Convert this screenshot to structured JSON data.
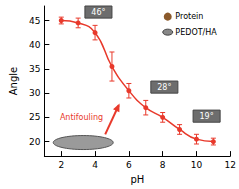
{
  "chart_data": {
    "type": "line",
    "x_label": "pH",
    "y_label": "Angle",
    "x": [
      2,
      3,
      4,
      5,
      6,
      7,
      8,
      9,
      10,
      11
    ],
    "values": [
      45,
      44.5,
      42.5,
      35.5,
      30.5,
      27,
      25,
      22.5,
      20.5,
      20
    ],
    "errors": [
      0.7,
      1,
      1.5,
      3,
      1.5,
      1.5,
      1,
      1,
      1,
      0.7
    ],
    "color": "#e8392b",
    "marker": "circle",
    "xlim": [
      1,
      12
    ],
    "xticks": [
      2,
      4,
      6,
      8,
      10,
      12
    ],
    "ylim": [
      17,
      48
    ],
    "yticks": [
      20,
      25,
      30,
      35,
      40,
      45
    ],
    "grid": false,
    "annotations": [
      "46°",
      "28°",
      "19°",
      "Protein",
      "PEDOT/HA",
      "Antifouling"
    ]
  }
}
